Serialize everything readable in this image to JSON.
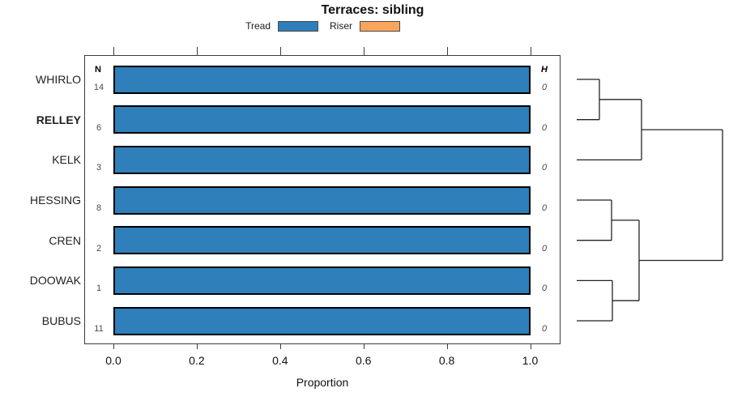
{
  "title": "Terraces: sibling",
  "legend": {
    "items": [
      {
        "label": "Tread",
        "color": "#2E7FBA"
      },
      {
        "label": "Riser",
        "color": "#FAA55C"
      }
    ]
  },
  "plot": {
    "xlabel": "Proportion",
    "tick_labels": [
      "0.0",
      "0.2",
      "0.4",
      "0.6",
      "0.8",
      "1.0"
    ],
    "n_header": "N",
    "h_header": "H"
  },
  "chart_data": {
    "type": "bar",
    "orientation": "horizontal",
    "title": "Terraces: sibling",
    "xlabel": "Proportion",
    "xlim": [
      0,
      1
    ],
    "xticks": [
      0,
      0.2,
      0.4,
      0.6,
      0.8,
      1.0
    ],
    "grid": false,
    "legend_position": "top",
    "categories": [
      "WHIRLO",
      "RELLEY",
      "KELK",
      "HESSING",
      "CREN",
      "DOOWAK",
      "BUBUS"
    ],
    "series": [
      {
        "name": "Tread",
        "color": "#2E7FBA",
        "values": [
          1.0,
          1.0,
          1.0,
          1.0,
          1.0,
          1.0,
          1.0
        ]
      },
      {
        "name": "Riser",
        "color": "#FAA55C",
        "values": [
          0,
          0,
          0,
          0,
          0,
          0,
          0
        ]
      }
    ],
    "annotations": {
      "N": [
        "14",
        "6",
        "3",
        "8",
        "2",
        "1",
        "11"
      ],
      "H": [
        "0",
        "0",
        "0",
        "0",
        "0",
        "0",
        "0"
      ]
    },
    "emphasized_category": "RELLEY",
    "dendrogram": {
      "leaves": [
        "WHIRLO",
        "RELLEY",
        "KELK",
        "HESSING",
        "CREN",
        "DOOWAK",
        "BUBUS"
      ],
      "joins": [
        {
          "id": "J0",
          "children": [
            "WHIRLO",
            "RELLEY"
          ]
        },
        {
          "id": "J1",
          "children": [
            "J0",
            "KELK"
          ]
        },
        {
          "id": "J2",
          "children": [
            "HESSING",
            "CREN"
          ]
        },
        {
          "id": "J3",
          "children": [
            "DOOWAK",
            "BUBUS"
          ]
        },
        {
          "id": "J4",
          "children": [
            "J2",
            "J3"
          ]
        },
        {
          "id": "J5",
          "children": [
            "J1",
            "J4"
          ]
        }
      ]
    }
  }
}
